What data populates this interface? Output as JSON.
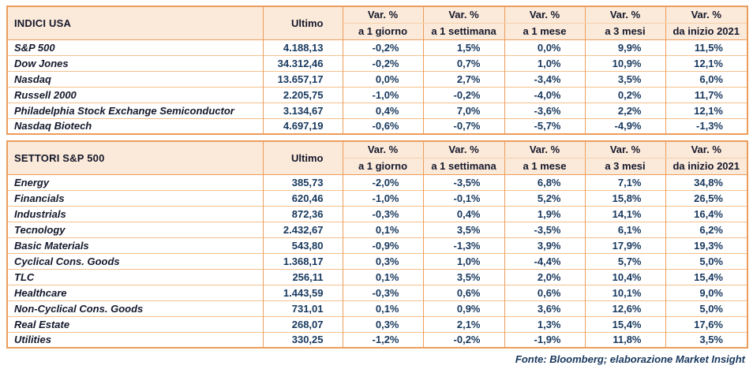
{
  "colors": {
    "border": "#ED9D5B",
    "row_line": "#F5C08C",
    "header_line": "#F6D2AC",
    "header_bg": "#FBE9D9",
    "text": "#14182B",
    "value": "#17375D"
  },
  "footer": "Fonte: Bloomberg; elaborazione Market Insight",
  "chart_data": [
    {
      "type": "table",
      "title": "INDICI USA",
      "ultimo_label": "Ultimo",
      "var_label": "Var. %",
      "period_labels": [
        "a 1 giorno",
        "a 1 settimana",
        "a 1 mese",
        "a 3 mesi",
        "da inizio 2021"
      ],
      "rows": [
        {
          "name": "S&P 500",
          "ultimo": "4.188,13",
          "var": [
            "-0,2%",
            "1,5%",
            "0,0%",
            "9,9%",
            "11,5%"
          ]
        },
        {
          "name": "Dow Jones",
          "ultimo": "34.312,46",
          "var": [
            "-0,2%",
            "0,7%",
            "1,0%",
            "10,9%",
            "12,1%"
          ]
        },
        {
          "name": "Nasdaq",
          "ultimo": "13.657,17",
          "var": [
            "0,0%",
            "2,7%",
            "-3,4%",
            "3,5%",
            "6,0%"
          ]
        },
        {
          "name": "Russell 2000",
          "ultimo": "2.205,75",
          "var": [
            "-1,0%",
            "-0,2%",
            "-4,0%",
            "0,2%",
            "11,7%"
          ]
        },
        {
          "name": "Philadelphia Stock Exchange Semiconductor",
          "ultimo": "3.134,67",
          "var": [
            "0,4%",
            "7,0%",
            "-3,6%",
            "2,2%",
            "12,1%"
          ]
        },
        {
          "name": "Nasdaq Biotech",
          "ultimo": "4.697,19",
          "var": [
            "-0,6%",
            "-0,7%",
            "-5,7%",
            "-4,9%",
            "-1,3%"
          ]
        }
      ]
    },
    {
      "type": "table",
      "title": "SETTORI S&P 500",
      "ultimo_label": "Ultimo",
      "var_label": "Var. %",
      "period_labels": [
        "a 1 giorno",
        "a 1 settimana",
        "a 1 mese",
        "a 3 mesi",
        "da inizio 2021"
      ],
      "rows": [
        {
          "name": "Energy",
          "ultimo": "385,73",
          "var": [
            "-2,0%",
            "-3,5%",
            "6,8%",
            "7,1%",
            "34,8%"
          ]
        },
        {
          "name": "Financials",
          "ultimo": "620,46",
          "var": [
            "-1,0%",
            "-0,1%",
            "5,2%",
            "15,8%",
            "26,5%"
          ]
        },
        {
          "name": "Industrials",
          "ultimo": "872,36",
          "var": [
            "-0,3%",
            "0,4%",
            "1,9%",
            "14,1%",
            "16,4%"
          ]
        },
        {
          "name": "Tecnology",
          "ultimo": "2.432,67",
          "var": [
            "0,1%",
            "3,5%",
            "-3,5%",
            "6,1%",
            "6,2%"
          ]
        },
        {
          "name": "Basic Materials",
          "ultimo": "543,80",
          "var": [
            "-0,9%",
            "-1,3%",
            "3,9%",
            "17,9%",
            "19,3%"
          ]
        },
        {
          "name": "Cyclical Cons. Goods",
          "ultimo": "1.368,17",
          "var": [
            "0,3%",
            "1,0%",
            "-4,4%",
            "5,7%",
            "5,0%"
          ]
        },
        {
          "name": "TLC",
          "ultimo": "256,11",
          "var": [
            "0,1%",
            "3,5%",
            "2,0%",
            "10,4%",
            "15,4%"
          ]
        },
        {
          "name": "Healthcare",
          "ultimo": "1.443,59",
          "var": [
            "-0,3%",
            "0,6%",
            "0,6%",
            "10,1%",
            "9,0%"
          ]
        },
        {
          "name": "Non-Cyclical Cons. Goods",
          "ultimo": "731,01",
          "var": [
            "0,1%",
            "0,9%",
            "3,6%",
            "12,6%",
            "5,0%"
          ]
        },
        {
          "name": "Real Estate",
          "ultimo": "268,07",
          "var": [
            "0,3%",
            "2,1%",
            "1,3%",
            "15,4%",
            "17,6%"
          ]
        },
        {
          "name": "Utilities",
          "ultimo": "330,25",
          "var": [
            "-1,2%",
            "-0,2%",
            "-1,9%",
            "11,8%",
            "3,5%"
          ]
        }
      ]
    }
  ]
}
